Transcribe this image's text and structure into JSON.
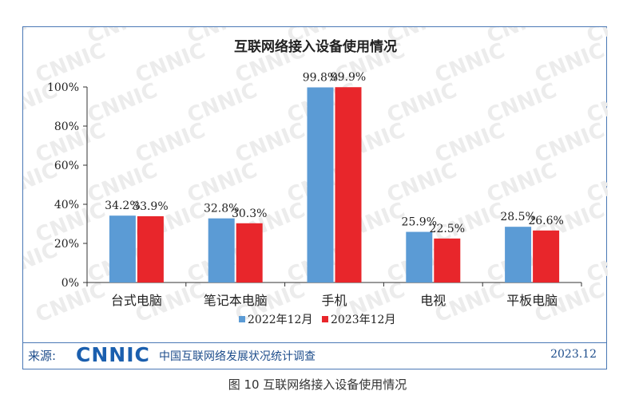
{
  "chart_data": {
    "type": "bar",
    "title": "互联网络接入设备使用情况",
    "categories": [
      "台式电脑",
      "笔记本电脑",
      "手机",
      "电视",
      "平板电脑"
    ],
    "series": [
      {
        "name": "2022年12月",
        "color": "#5b9bd5",
        "values": [
          34.2,
          32.8,
          99.8,
          25.9,
          28.5
        ],
        "labels": [
          "34.2%",
          "32.8%",
          "99.8%",
          "25.9%",
          "28.5%"
        ]
      },
      {
        "name": "2023年12月",
        "color": "#e8262b",
        "values": [
          33.9,
          30.3,
          99.9,
          22.5,
          26.6
        ],
        "labels": [
          "33.9%",
          "30.3%",
          "99.9%",
          "22.5%",
          "26.6%"
        ]
      }
    ],
    "yticks": [
      "0%",
      "20%",
      "40%",
      "60%",
      "80%",
      "100%"
    ],
    "ylim": [
      0,
      100
    ],
    "legend_position": "bottom"
  },
  "watermark": "CNNIC",
  "source": {
    "label": "来源:",
    "logo": "CNNIC",
    "name": "中国互联网络发展状况统计调查",
    "date": "2023.12"
  },
  "caption": "图 10  互联网络接入设备使用情况"
}
